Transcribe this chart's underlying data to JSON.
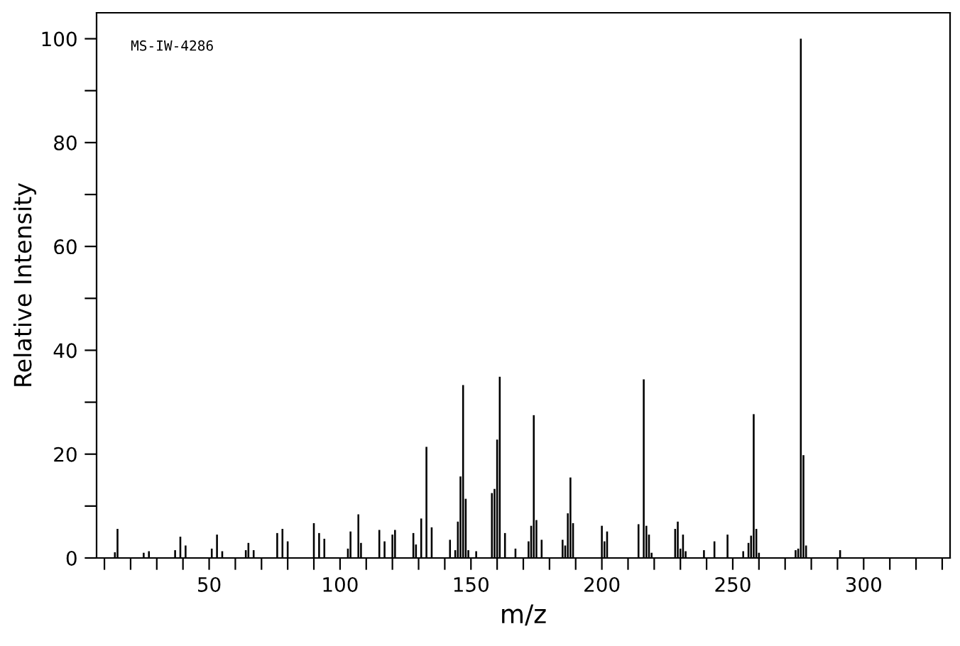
{
  "chart_data": {
    "type": "bar",
    "xlabel": "m/z",
    "ylabel": "Relative Intensity",
    "annotations": [
      "MS-IW-4286"
    ],
    "x": [
      14,
      15,
      25,
      27,
      37,
      39,
      41,
      51,
      53,
      55,
      64,
      65,
      67,
      76,
      78,
      80,
      90,
      92,
      94,
      103,
      104,
      107,
      108,
      115,
      117,
      120,
      121,
      128,
      129,
      131,
      133,
      135,
      142,
      144,
      145,
      146,
      147,
      148,
      149,
      152,
      158,
      159,
      160,
      161,
      163,
      167,
      172,
      173,
      174,
      175,
      177,
      185,
      186,
      187,
      188,
      189,
      200,
      201,
      202,
      214,
      216,
      217,
      218,
      219,
      228,
      229,
      230,
      231,
      232,
      239,
      243,
      248,
      254,
      256,
      257,
      258,
      259,
      260,
      274,
      275,
      276,
      277,
      278,
      291
    ],
    "values": [
      1.1,
      5.6,
      1.0,
      1.3,
      1.5,
      4.1,
      2.4,
      1.8,
      4.5,
      1.3,
      1.5,
      2.9,
      1.5,
      4.8,
      5.6,
      3.2,
      6.7,
      4.8,
      3.7,
      1.8,
      5.1,
      8.4,
      2.9,
      5.4,
      3.2,
      4.5,
      5.4,
      4.8,
      2.6,
      7.6,
      21.4,
      5.9,
      3.5,
      1.5,
      7.0,
      15.7,
      33.3,
      11.4,
      1.5,
      1.3,
      12.5,
      13.3,
      22.8,
      34.9,
      4.8,
      1.8,
      3.2,
      6.2,
      27.5,
      7.3,
      3.5,
      3.5,
      2.4,
      8.6,
      15.5,
      6.7,
      6.2,
      3.2,
      5.1,
      6.5,
      34.4,
      6.2,
      4.5,
      1.0,
      5.6,
      7.0,
      1.8,
      4.5,
      1.3,
      1.5,
      3.2,
      4.5,
      1.3,
      2.9,
      4.3,
      27.7,
      5.6,
      1.0,
      1.5,
      1.8,
      100,
      19.8,
      2.4,
      1.5
    ],
    "color": "#000000",
    "xlim": [
      7,
      333
    ],
    "ylim": [
      0,
      105
    ],
    "xticks": [
      {
        "value": 10,
        "label": null
      },
      {
        "value": 20,
        "label": null
      },
      {
        "value": 30,
        "label": null
      },
      {
        "value": 40,
        "label": null
      },
      50,
      {
        "value": 60,
        "label": null
      },
      {
        "value": 70,
        "label": null
      },
      {
        "value": 80,
        "label": null
      },
      {
        "value": 90,
        "label": null
      },
      100,
      {
        "value": 110,
        "label": null
      },
      {
        "value": 120,
        "label": null
      },
      {
        "value": 130,
        "label": null
      },
      {
        "value": 140,
        "label": null
      },
      150,
      {
        "value": 160,
        "label": null
      },
      {
        "value": 170,
        "label": null
      },
      {
        "value": 180,
        "label": null
      },
      {
        "value": 190,
        "label": null
      },
      200,
      {
        "value": 210,
        "label": null
      },
      {
        "value": 220,
        "label": null
      },
      {
        "value": 230,
        "label": null
      },
      {
        "value": 240,
        "label": null
      },
      250,
      {
        "value": 260,
        "label": null
      },
      {
        "value": 270,
        "label": null
      },
      {
        "value": 280,
        "label": null
      },
      {
        "value": 290,
        "label": null
      },
      300,
      {
        "value": 310,
        "label": null
      },
      {
        "value": 320,
        "label": null
      },
      {
        "value": 330,
        "label": null
      }
    ],
    "yticks": [
      0,
      {
        "value": 10,
        "label": null
      },
      20,
      {
        "value": 30,
        "label": null
      },
      40,
      {
        "value": 50,
        "label": null
      },
      60,
      {
        "value": 70,
        "label": null
      },
      80,
      {
        "value": 90,
        "label": null
      },
      100
    ],
    "grid": false,
    "legend": false
  }
}
